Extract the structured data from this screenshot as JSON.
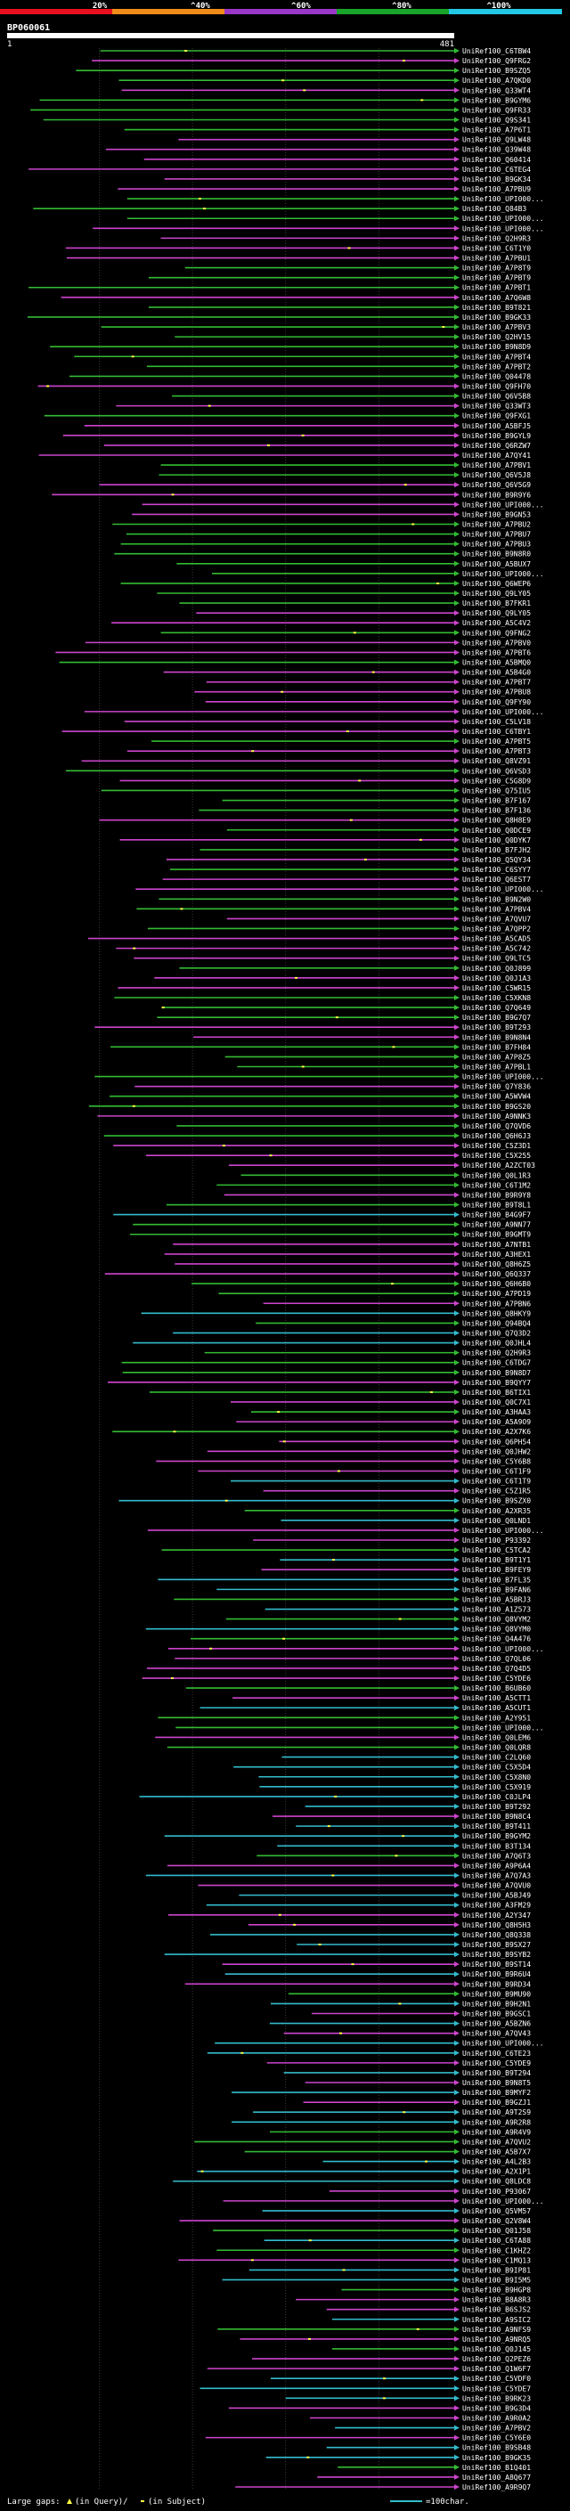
{
  "colors": {
    "background": "#000000",
    "query_bar": "#ffffff",
    "grid": "#3a3a3a",
    "text": "#ffffff",
    "identity_bands": [
      "#e8101e",
      "#f08c1a",
      "#9a36c8",
      "#1aa52a",
      "#22c8e6"
    ],
    "line_colors": {
      "magenta": "#cc44cc",
      "green": "#33bb33",
      "cyan": "#33bbcc"
    },
    "gap_marker": "#ffff44"
  },
  "legend": {
    "labels": [
      "20%",
      "^40%",
      "^60%",
      "^80%",
      "^100%"
    ]
  },
  "query": {
    "id": "BP060061",
    "start_label": "1",
    "end_label": "481"
  },
  "footer": {
    "gaps_prefix": "Large gaps:",
    "gaps_query": "(in Query)/",
    "gaps_subject": "(in Subject)",
    "scale_label": "=100char."
  },
  "chart_data": {
    "type": "alignment",
    "x_axis": {
      "min": 1,
      "max": 481
    },
    "identity_bands": [
      "20%",
      "^40%",
      "^60%",
      "^80%",
      "^100%"
    ],
    "hits": [
      "UniRef100_C6TBW4",
      "UniRef100_Q9FRG2",
      "UniRef100_B9SZQ5",
      "UniRef100_A7QKD0",
      "UniRef100_Q33WT4",
      "UniRef100_B9GYM6",
      "UniRef100_Q9FR33",
      "UniRef100_Q9S341",
      "UniRef100_A7P6T1",
      "UniRef100_Q9LW48",
      "UniRef100_Q39W48",
      "UniRef100_Q60414",
      "UniRef100_C6TEG4",
      "UniRef100_B9GK34",
      "UniRef100_A7PBU9",
      "UniRef100_UPI000...",
      "UniRef100_Q84B3",
      "UniRef100_UPI000...",
      "UniRef100_UPI000...",
      "UniRef100_Q2H9R3",
      "UniRef100_C6T1Y0",
      "UniRef100_A7PBU1",
      "UniRef100_A7P8T9",
      "UniRef100_A7PBT9",
      "UniRef100_A7PBT1",
      "UniRef100_A7Q6W8",
      "UniRef100_B9T821",
      "UniRef100_B9GK33",
      "UniRef100_A7PBV3",
      "UniRef100_Q2HV15",
      "UniRef100_B9N8D9",
      "UniRef100_A7PBT4",
      "UniRef100_A7PBT2",
      "UniRef100_Q04478",
      "UniRef100_Q9FH70",
      "UniRef100_Q6V5B8",
      "UniRef100_Q33WT3",
      "UniRef100_Q9FXG1",
      "UniRef100_A5BFJ5",
      "UniRef100_B9GYL9",
      "UniRef100_Q6RZW7",
      "UniRef100_A7QY41",
      "UniRef100_A7PBV1",
      "UniRef100_Q6V5J8",
      "UniRef100_Q6V5G9",
      "UniRef100_B9R9Y6",
      "UniRef100_UPI000...",
      "UniRef100_B9GN53",
      "UniRef100_A7PBU2",
      "UniRef100_A7PBU7",
      "UniRef100_A7PBU3",
      "UniRef100_B9N8R0",
      "UniRef100_A5BUX7",
      "UniRef100_UPI000...",
      "UniRef100_Q6WEP6",
      "UniRef100_Q9LY05",
      "UniRef100_B7FKR1",
      "UniRef100_Q9LY05",
      "UniRef100_A5C4V2",
      "UniRef100_Q9FNG2",
      "UniRef100_A7PBV0",
      "UniRef100_A7PBT6",
      "UniRef100_A5BMQ0",
      "UniRef100_A5B4G0",
      "UniRef100_A7PBT7",
      "UniRef100_A7PBU8",
      "UniRef100_Q9FY90",
      "UniRef100_UPI000...",
      "UniRef100_C5LV18",
      "UniRef100_C6TBY1",
      "UniRef100_A7PBT5",
      "UniRef100_A7PBT3",
      "UniRef100_Q8VZ91",
      "UniRef100_Q6VSD3",
      "UniRef100_C5G8D9",
      "UniRef100_Q75IU5",
      "UniRef100_B7F167",
      "UniRef100_B7F136",
      "UniRef100_Q8H8E9",
      "UniRef100_Q0DCE9",
      "UniRef100_Q0DYK7",
      "UniRef100_B7FJH2",
      "UniRef100_Q5QY34",
      "UniRef100_C6SYY7",
      "UniRef100_Q6EST7",
      "UniRef100_UPI000...",
      "UniRef100_B9N2W0",
      "UniRef100_A7PBV4",
      "UniRef100_A7QVU7",
      "UniRef100_A7QPP2",
      "UniRef100_A5CAD5",
      "UniRef100_A5C742",
      "UniRef100_Q9LTC5",
      "UniRef100_Q0J899",
      "UniRef100_Q0J1A3",
      "UniRef100_C5WR15",
      "UniRef100_C5XKN8",
      "UniRef100_Q7Q649",
      "UniRef100_B9G7Q7",
      "UniRef100_B9T293",
      "UniRef100_B9N8N4",
      "UniRef100_B7FH84",
      "UniRef100_A7P8Z5",
      "UniRef100_A7PBL1",
      "UniRef100_UPI000...",
      "UniRef100_Q7Y836",
      "UniRef100_A5WVW4",
      "UniRef100_B9GS20",
      "UniRef100_A9NNK3",
      "UniRef100_Q7QVD6",
      "UniRef100_Q6H6J3",
      "UniRef100_C5Z3D1",
      "UniRef100_C5X255",
      "UniRef100_A2ZCT03",
      "UniRef100_Q0L1R3",
      "UniRef100_C6T1M2",
      "UniRef100_B9R9Y8",
      "UniRef100_B9T8L1",
      "UniRef100_B4G9F7",
      "UniRef100_A9NN77",
      "UniRef100_B9GMT9",
      "UniRef100_A7NTB1",
      "UniRef100_A3HEX1",
      "UniRef100_Q8H6Z5",
      "UniRef100_Q6Q337",
      "UniRef100_Q6H6B0",
      "UniRef100_A7PD19",
      "UniRef100_A7PBN6",
      "UniRef100_Q8HKY9",
      "UniRef100_Q94BQ4",
      "UniRef100_Q7Q3D2",
      "UniRef100_Q0JHL4",
      "UniRef100_Q2H9R3",
      "UniRef100_C6TDG7",
      "UniRef100_B9N8D7",
      "UniRef100_B9QYY7",
      "UniRef100_B6TIX1",
      "UniRef100_Q0C7X1",
      "UniRef100_A3HAA3",
      "UniRef100_A5A9O9",
      "UniRef100_A2X7K6",
      "UniRef100_Q6PH54",
      "UniRef100_Q0JHW2",
      "UniRef100_C5Y6B8",
      "UniRef100_C6T1F9",
      "UniRef100_C6T1T9",
      "UniRef100_C5Z1R5",
      "UniRef100_B9SZX0",
      "UniRef100_A2XR35",
      "UniRef100_Q0LND1",
      "UniRef100_UPI000...",
      "UniRef100_P93392",
      "UniRef100_C5TCA2",
      "UniRef100_B9T1Y1",
      "UniRef100_B9FEY9",
      "UniRef100_B7FL35",
      "UniRef100_B9FAN6",
      "UniRef100_A5BRJ3",
      "UniRef100_A1Z573",
      "UniRef100_Q8VYM2",
      "UniRef100_Q8VYM0",
      "UniRef100_Q4A476",
      "UniRef100_UPI000...",
      "UniRef100_Q7QL06",
      "UniRef100_Q7Q4D5",
      "UniRef100_C5YDE6",
      "UniRef100_B6UB60",
      "UniRef100_A5CTT1",
      "UniRef100_A5CUT1",
      "UniRef100_A2Y951",
      "UniRef100_UPI000...",
      "UniRef100_Q0LEM6",
      "UniRef100_Q0LQR8",
      "UniRef100_C2LQ60",
      "UniRef100_C5X5D4",
      "UniRef100_C5X8N0",
      "UniRef100_C5X919",
      "UniRef100_C0JLP4",
      "UniRef100_B9T292",
      "UniRef100_B9N8C4",
      "UniRef100_B9T411",
      "UniRef100_B9GYM2",
      "UniRef100_B3T134",
      "UniRef100_A7Q6T3",
      "UniRef100_A9P6A4",
      "UniRef100_A7Q7A3",
      "UniRef100_A7QVU0",
      "UniRef100_A5BJ49",
      "UniRef100_A3FM29",
      "UniRef100_A2Y347",
      "UniRef100_Q8H5H3",
      "UniRef100_Q8Q338",
      "UniRef100_B9SX27",
      "UniRef100_B9SYB2",
      "UniRef100_B9ST14",
      "UniRef100_B9R6U4",
      "UniRef100_B9RD34",
      "UniRef100_B9MU90",
      "UniRef100_B9H2N1",
      "UniRef100_B9GSC1",
      "UniRef100_A5BZN6",
      "UniRef100_A7QV43",
      "UniRef100_UPI000...",
      "UniRef100_C6TE23",
      "UniRef100_C5YDE9",
      "UniRef100_B9T294",
      "UniRef100_B9N8T5",
      "UniRef100_B9MYF2",
      "UniRef100_B9GZJ1",
      "UniRef100_A9T2S9",
      "UniRef100_A9R2R8",
      "UniRef100_A9R4V9",
      "UniRef100_A7QVU2",
      "UniRef100_A5B7X7",
      "UniRef100_A4L2B3",
      "UniRef100_A2X1P1",
      "UniRef100_Q8LDC8",
      "UniRef100_P93067",
      "UniRef100_UPI000...",
      "UniRef100_Q5VM57",
      "UniRef100_Q2V8W4",
      "UniRef100_Q01J58",
      "UniRef100_C6TA88",
      "UniRef100_C1KHZ2",
      "UniRef100_C1MQ13",
      "UniRef100_B9IP81",
      "UniRef100_B9I5M5",
      "UniRef100_B9HGP8",
      "UniRef100_B8A8R3",
      "UniRef100_B6SJS2",
      "UniRef100_A9SIC2",
      "UniRef100_A9NFS9",
      "UniRef100_A9NRQ5",
      "UniRef100_Q0J145",
      "UniRef100_Q2PEZ6",
      "UniRef100_Q1W6F7",
      "UniRef100_C5VDF0",
      "UniRef100_C5YDE7",
      "UniRef100_B9RK23",
      "UniRef100_B9G3D4",
      "UniRef100_A9R0A2",
      "UniRef100_A7PBV2",
      "UniRef100_C5Y6E0",
      "UniRef100_B9SB48",
      "UniRef100_B9GK35",
      "UniRef100_B1Q401",
      "UniRef100_A8Q677",
      "UniRef100_A9R9Q7"
    ]
  }
}
